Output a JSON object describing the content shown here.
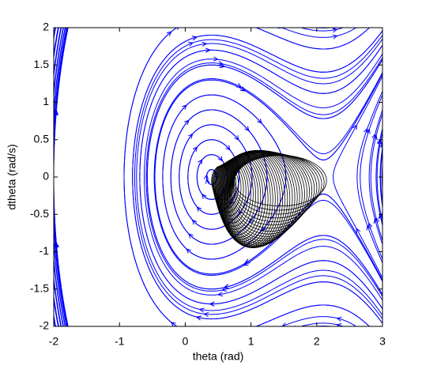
{
  "chart_data": {
    "type": "streamline",
    "xlabel": "theta (rad)",
    "ylabel": "dtheta (rad/s)",
    "xlim": [
      -2,
      3
    ],
    "ylim": [
      -2,
      2
    ],
    "xticks": [
      -2,
      -1,
      0,
      1,
      2,
      3
    ],
    "yticks": [
      -2,
      -1.5,
      -1,
      -0.5,
      0,
      0.5,
      1,
      1.5,
      2
    ],
    "color": "#0000ff",
    "trajectory_color": "#000000"
  }
}
